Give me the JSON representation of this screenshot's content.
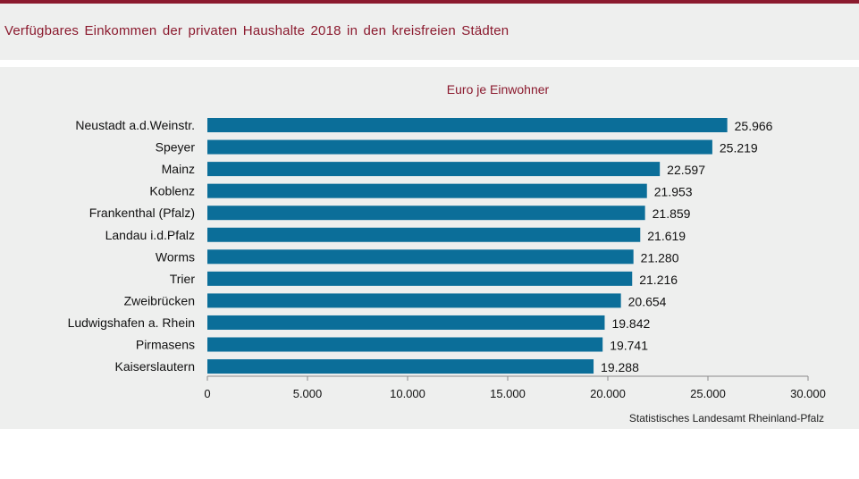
{
  "header": {
    "title": "Verfügbares Einkommen der privaten Haushalte 2018 in den kreisfreien Städten"
  },
  "colors": {
    "bar": "#0b6e99",
    "accent": "#8b1a2e",
    "panel": "#eeefee"
  },
  "chart_data": {
    "type": "bar",
    "orientation": "horizontal",
    "title": "Euro je Einwohner",
    "source": "Statistisches Landesamt Rheinland-Pfalz",
    "categories": [
      "Neustadt a.d.Weinstr.",
      "Speyer",
      "Mainz",
      "Koblenz",
      "Frankenthal (Pfalz)",
      "Landau i.d.Pfalz",
      "Worms",
      "Trier",
      "Zweibrücken",
      "Ludwigshafen a. Rhein",
      "Pirmasens",
      "Kaiserslautern"
    ],
    "values": [
      25966,
      25219,
      22597,
      21953,
      21859,
      21619,
      21280,
      21216,
      20654,
      19842,
      19741,
      19288
    ],
    "value_labels": [
      "25.966",
      "25.219",
      "22.597",
      "21.953",
      "21.859",
      "21.619",
      "21.280",
      "21.216",
      "20.654",
      "19.842",
      "19.741",
      "19.288"
    ],
    "xlim": [
      0,
      30000
    ],
    "x_ticks": [
      0,
      5000,
      10000,
      15000,
      20000,
      25000,
      30000
    ],
    "x_tick_labels": [
      "0",
      "5.000",
      "10.000",
      "15.000",
      "20.000",
      "25.000",
      "30.000"
    ],
    "grid": false,
    "legend": "none"
  }
}
